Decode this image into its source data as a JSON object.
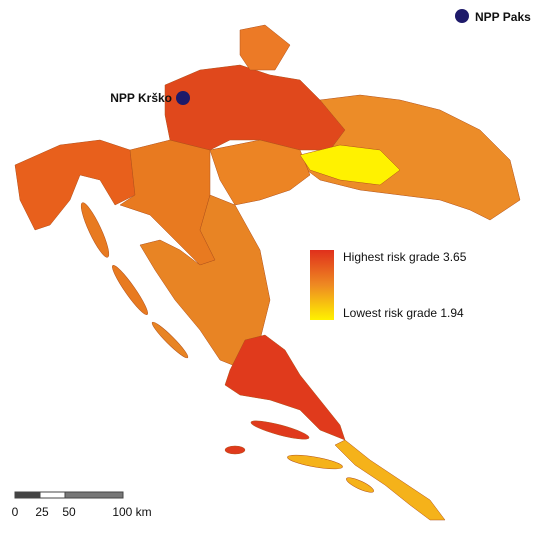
{
  "plants": [
    {
      "label": "NPP Paks"
    },
    {
      "label": "NPP Krško"
    }
  ],
  "legend": {
    "high": "Highest risk grade 3.65",
    "low": "Lowest risk grade 1.94"
  },
  "scale_bar": {
    "labels": [
      "0",
      "25",
      "50",
      "100 km"
    ]
  }
}
